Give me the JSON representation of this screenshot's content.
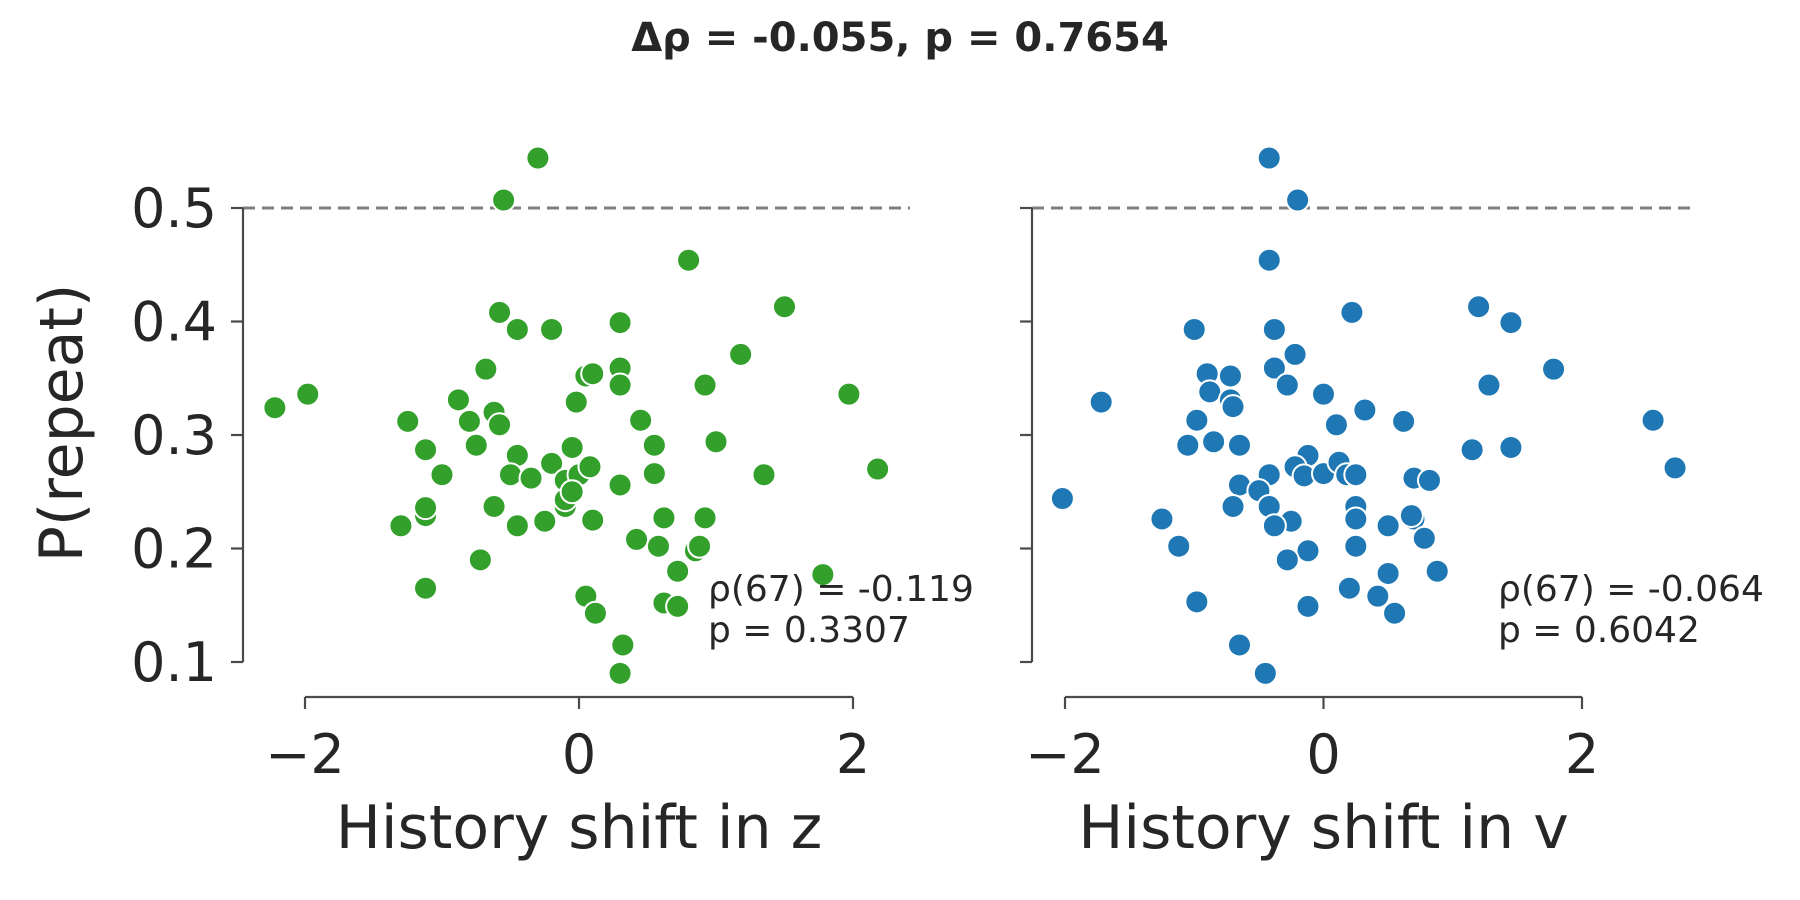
{
  "figure": {
    "suptitle": "Δρ = -0.055, p = 0.7654",
    "ylabel": "P(repeat)"
  },
  "chart_data": [
    {
      "type": "scatter",
      "xlabel": "History shift in z",
      "ylabel": "P(repeat)",
      "xlim": [
        -2.5,
        2.5
      ],
      "ylim": [
        0.09,
        0.55
      ],
      "xticks": [
        -2,
        0,
        2
      ],
      "yticks": [
        0.1,
        0.2,
        0.3,
        0.4,
        0.5
      ],
      "reference_line_y": 0.5,
      "color": "#33a02c",
      "annotation": [
        "ρ(67) = -0.119",
        "p = 0.3307"
      ],
      "points": [
        [
          -0.3,
          0.544
        ],
        [
          -0.55,
          0.507
        ],
        [
          0.8,
          0.454
        ],
        [
          -0.58,
          0.408
        ],
        [
          1.5,
          0.413
        ],
        [
          -0.45,
          0.393
        ],
        [
          -0.2,
          0.393
        ],
        [
          0.3,
          0.399
        ],
        [
          1.18,
          0.371
        ],
        [
          -0.68,
          0.358
        ],
        [
          0.3,
          0.359
        ],
        [
          0.05,
          0.352
        ],
        [
          0.1,
          0.354
        ],
        [
          0.92,
          0.344
        ],
        [
          0.3,
          0.344
        ],
        [
          -2.22,
          0.324
        ],
        [
          -1.98,
          0.336
        ],
        [
          1.97,
          0.336
        ],
        [
          -0.88,
          0.331
        ],
        [
          -0.02,
          0.329
        ],
        [
          -1.25,
          0.312
        ],
        [
          -0.8,
          0.312
        ],
        [
          -0.62,
          0.32
        ],
        [
          -0.58,
          0.309
        ],
        [
          0.45,
          0.313
        ],
        [
          -1.12,
          0.287
        ],
        [
          -0.75,
          0.291
        ],
        [
          -0.05,
          0.289
        ],
        [
          0.55,
          0.291
        ],
        [
          1.0,
          0.294
        ],
        [
          -1.0,
          0.265
        ],
        [
          -0.45,
          0.282
        ],
        [
          -0.5,
          0.265
        ],
        [
          -0.35,
          0.262
        ],
        [
          -0.2,
          0.275
        ],
        [
          -0.1,
          0.26
        ],
        [
          0.0,
          0.265
        ],
        [
          0.08,
          0.272
        ],
        [
          0.3,
          0.256
        ],
        [
          0.55,
          0.266
        ],
        [
          1.35,
          0.265
        ],
        [
          2.18,
          0.27
        ],
        [
          -1.12,
          0.229
        ],
        [
          -1.12,
          0.236
        ],
        [
          -1.3,
          0.22
        ],
        [
          -0.62,
          0.237
        ],
        [
          -0.45,
          0.22
        ],
        [
          -0.25,
          0.224
        ],
        [
          -0.1,
          0.237
        ],
        [
          -0.1,
          0.243
        ],
        [
          -0.05,
          0.25
        ],
        [
          0.1,
          0.225
        ],
        [
          0.62,
          0.227
        ],
        [
          0.92,
          0.227
        ],
        [
          -0.72,
          0.19
        ],
        [
          0.42,
          0.208
        ],
        [
          0.58,
          0.202
        ],
        [
          0.85,
          0.198
        ],
        [
          0.88,
          0.202
        ],
        [
          0.72,
          0.18
        ],
        [
          1.78,
          0.177
        ],
        [
          -1.12,
          0.165
        ],
        [
          0.05,
          0.158
        ],
        [
          0.12,
          0.143
        ],
        [
          0.62,
          0.152
        ],
        [
          0.72,
          0.149
        ],
        [
          0.32,
          0.115
        ],
        [
          0.3,
          0.09
        ]
      ]
    },
    {
      "type": "scatter",
      "xlabel": "History shift in v",
      "ylabel": "",
      "xlim": [
        -2.2,
        2.9
      ],
      "ylim": [
        0.09,
        0.55
      ],
      "xticks": [
        -2,
        0,
        2
      ],
      "yticks": [
        0.1,
        0.2,
        0.3,
        0.4,
        0.5
      ],
      "reference_line_y": 0.5,
      "color": "#1f78b4",
      "annotation": [
        "ρ(67) = -0.064",
        "p = 0.6042"
      ],
      "points": [
        [
          -0.42,
          0.544
        ],
        [
          -0.2,
          0.507
        ],
        [
          -0.42,
          0.454
        ],
        [
          0.22,
          0.408
        ],
        [
          1.2,
          0.413
        ],
        [
          1.45,
          0.399
        ],
        [
          -1.0,
          0.393
        ],
        [
          -0.38,
          0.393
        ],
        [
          -0.22,
          0.371
        ],
        [
          1.78,
          0.358
        ],
        [
          -0.9,
          0.354
        ],
        [
          -0.72,
          0.352
        ],
        [
          -0.38,
          0.359
        ],
        [
          -0.28,
          0.344
        ],
        [
          1.28,
          0.344
        ],
        [
          -0.88,
          0.338
        ],
        [
          -0.72,
          0.331
        ],
        [
          -0.7,
          0.325
        ],
        [
          0.0,
          0.336
        ],
        [
          -1.72,
          0.329
        ],
        [
          0.32,
          0.322
        ],
        [
          -0.98,
          0.313
        ],
        [
          0.1,
          0.309
        ],
        [
          0.62,
          0.312
        ],
        [
          2.55,
          0.313
        ],
        [
          -1.05,
          0.291
        ],
        [
          -0.85,
          0.294
        ],
        [
          -0.65,
          0.291
        ],
        [
          1.15,
          0.287
        ],
        [
          1.45,
          0.289
        ],
        [
          2.72,
          0.271
        ],
        [
          -0.12,
          0.282
        ],
        [
          -0.22,
          0.272
        ],
        [
          -0.42,
          0.265
        ],
        [
          -0.15,
          0.264
        ],
        [
          0.0,
          0.266
        ],
        [
          0.12,
          0.276
        ],
        [
          0.18,
          0.265
        ],
        [
          0.25,
          0.265
        ],
        [
          0.7,
          0.262
        ],
        [
          0.82,
          0.26
        ],
        [
          -0.65,
          0.256
        ],
        [
          -0.5,
          0.251
        ],
        [
          -2.02,
          0.244
        ],
        [
          -0.7,
          0.237
        ],
        [
          -0.42,
          0.237
        ],
        [
          0.25,
          0.237
        ],
        [
          -1.25,
          0.226
        ],
        [
          -0.25,
          0.224
        ],
        [
          -0.38,
          0.22
        ],
        [
          0.25,
          0.226
        ],
        [
          0.5,
          0.22
        ],
        [
          0.7,
          0.226
        ],
        [
          0.68,
          0.229
        ],
        [
          0.78,
          0.209
        ],
        [
          -1.12,
          0.202
        ],
        [
          -0.12,
          0.198
        ],
        [
          0.25,
          0.202
        ],
        [
          -0.28,
          0.19
        ],
        [
          0.5,
          0.178
        ],
        [
          0.88,
          0.18
        ],
        [
          0.2,
          0.165
        ],
        [
          0.42,
          0.158
        ],
        [
          -0.98,
          0.153
        ],
        [
          -0.12,
          0.149
        ],
        [
          0.55,
          0.143
        ],
        [
          -0.65,
          0.115
        ],
        [
          -0.45,
          0.09
        ]
      ]
    }
  ]
}
